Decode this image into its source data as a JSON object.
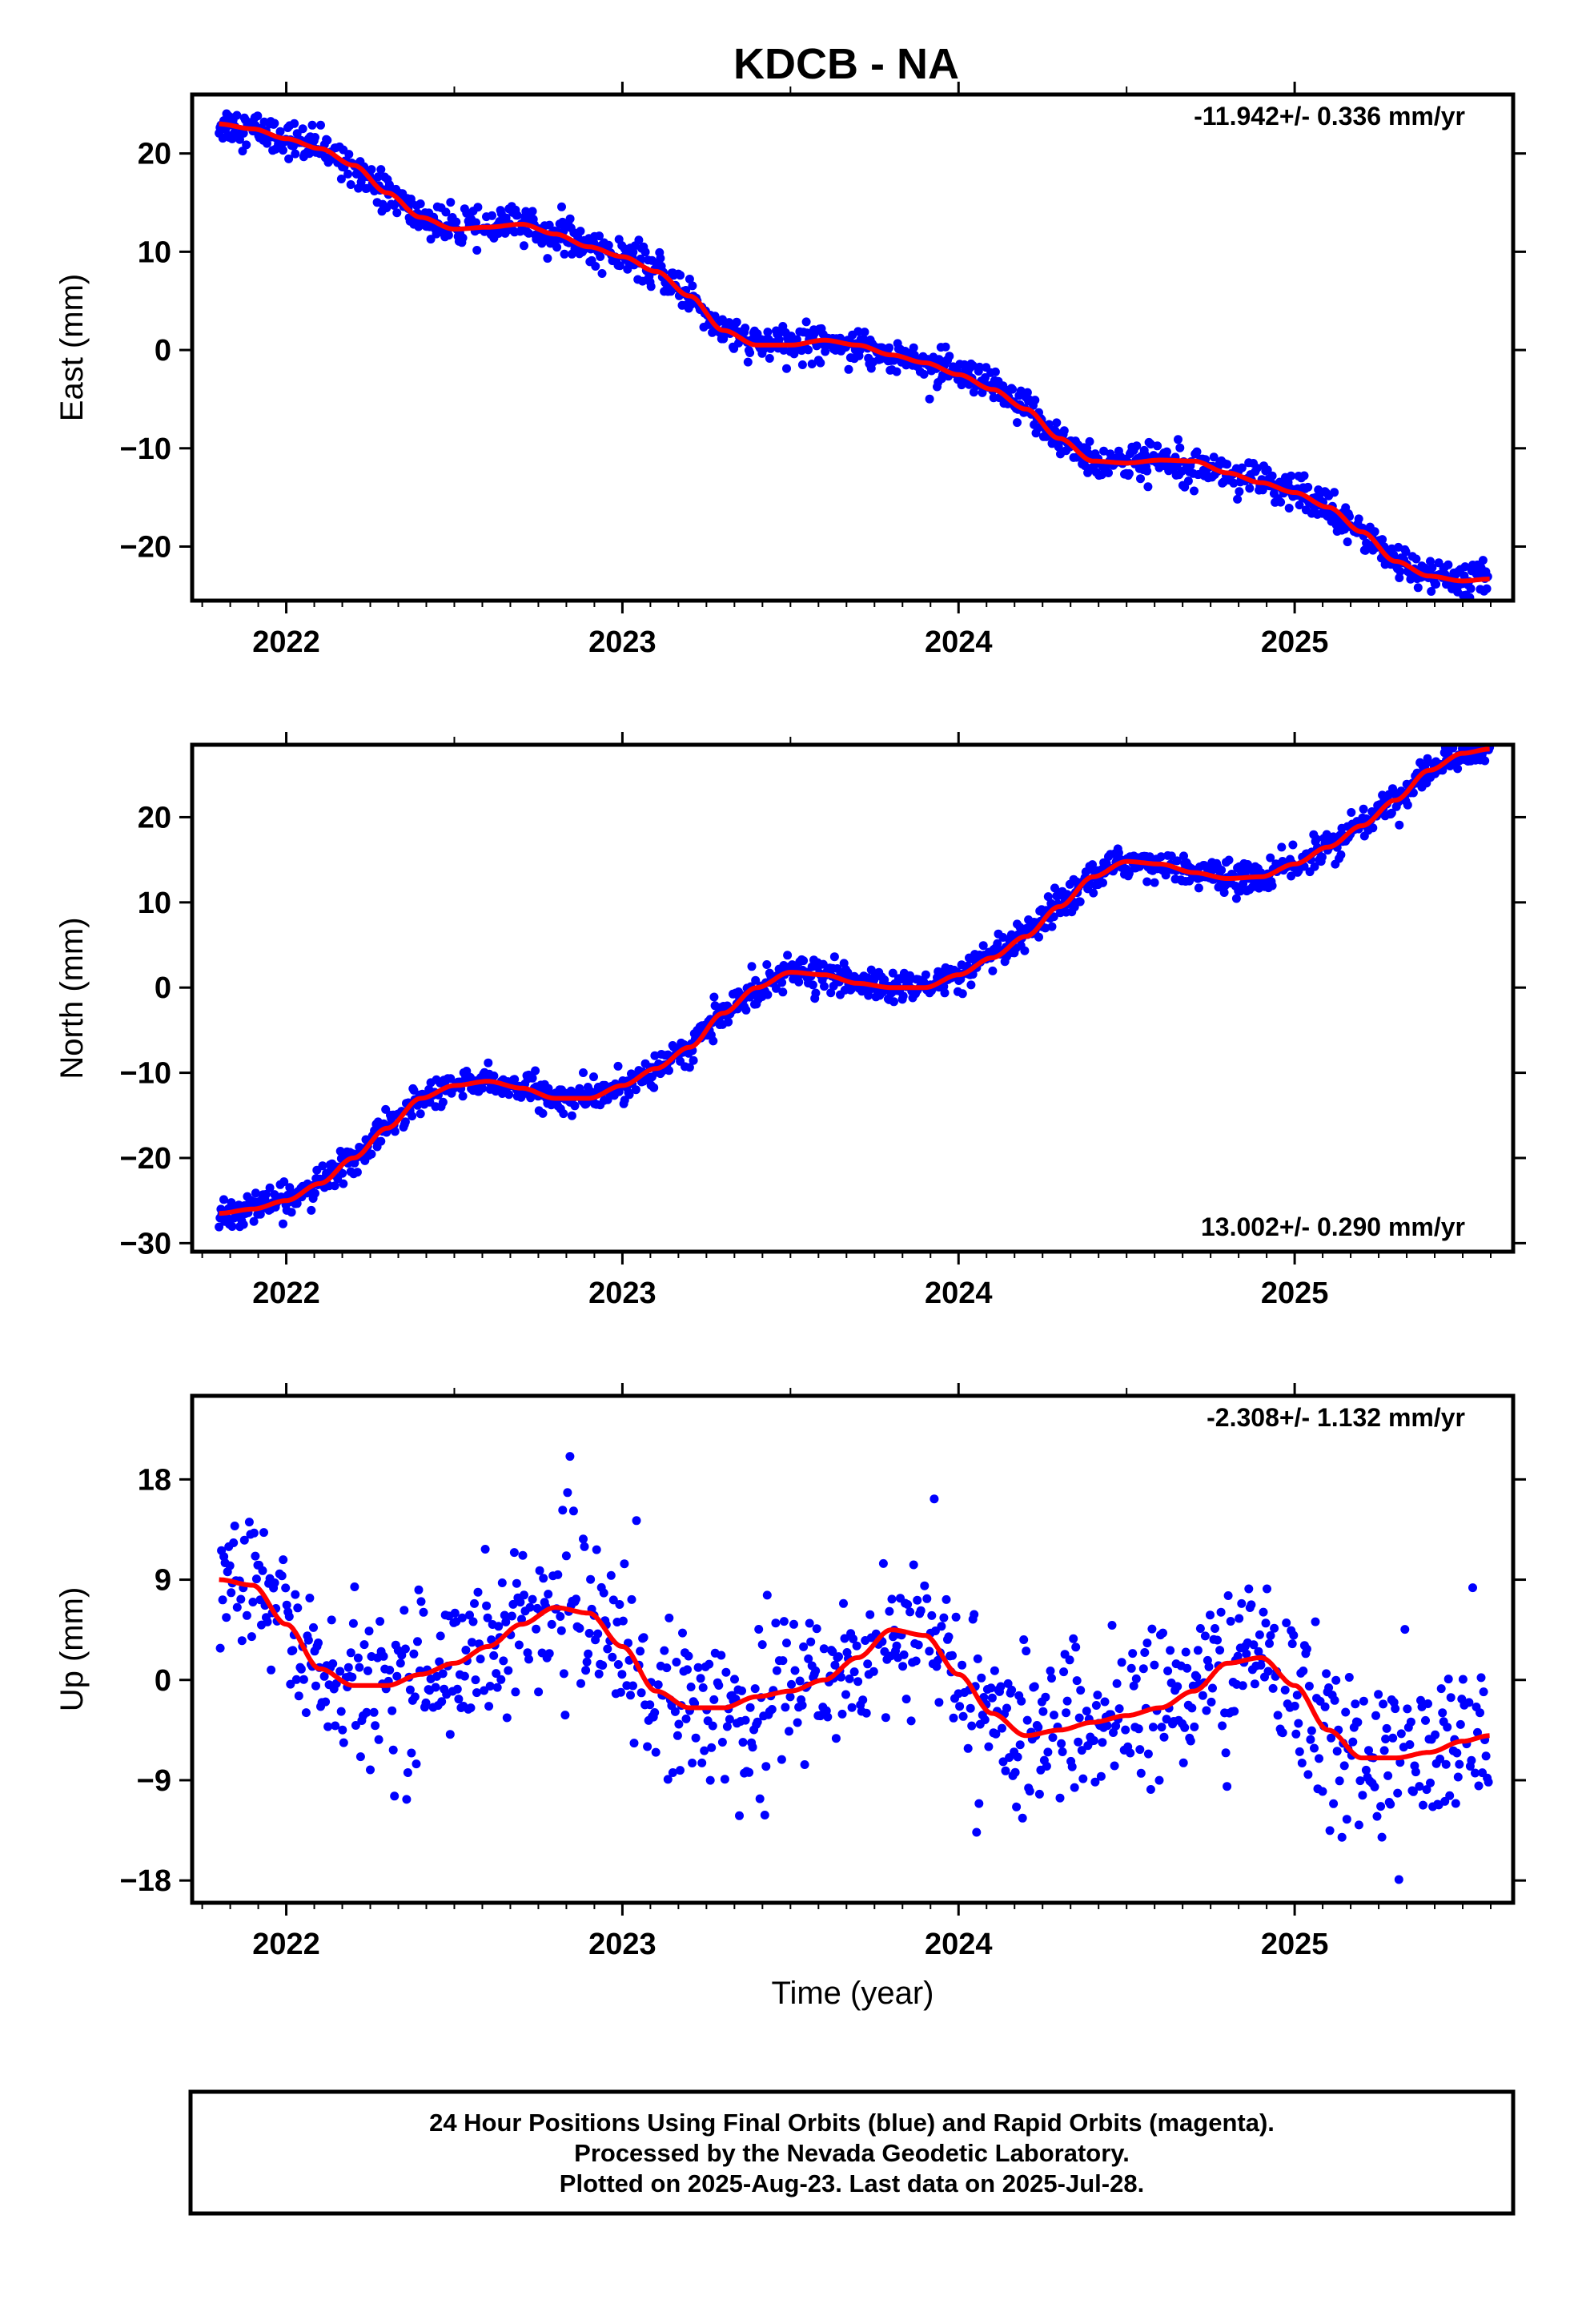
{
  "page": {
    "title": "KDCB - NA",
    "footer_lines": [
      "24 Hour Positions Using Final Orbits (blue) and Rapid Orbits (magenta).",
      "Processed by the Nevada Geodetic Laboratory.",
      "Plotted on 2025-Aug-23. Last data on 2025-Jul-28."
    ],
    "colors": {
      "points": "#0000ff",
      "fit": "#ff0000",
      "frame": "#000000"
    }
  },
  "chart_data": [
    {
      "type": "scatter",
      "component": "east",
      "ylabel": "East (mm)",
      "xlabel": "",
      "rate_text": "-11.942+/- 0.336 mm/yr",
      "rate_position": "top-right",
      "xlim": [
        2021.72,
        2025.65
      ],
      "ylim": [
        -25.5,
        26
      ],
      "xticks": [
        2022,
        2023,
        2024,
        2025
      ],
      "xtick_labels": [
        "2022",
        "2023",
        "2024",
        "2025"
      ],
      "yticks": [
        -20,
        -10,
        0,
        10,
        20
      ],
      "ytick_labels": [
        "−20",
        "−10",
        "0",
        "10",
        "20"
      ],
      "scatter_sigma": 0.9,
      "fit_knots": [
        [
          2021.8,
          23
        ],
        [
          2021.9,
          22.5
        ],
        [
          2022.0,
          21.5
        ],
        [
          2022.1,
          20.5
        ],
        [
          2022.2,
          18.8
        ],
        [
          2022.3,
          16
        ],
        [
          2022.4,
          13.5
        ],
        [
          2022.5,
          12.3
        ],
        [
          2022.6,
          12.5
        ],
        [
          2022.7,
          12.8
        ],
        [
          2022.8,
          11.8
        ],
        [
          2022.9,
          10.5
        ],
        [
          2023.0,
          9.5
        ],
        [
          2023.1,
          8
        ],
        [
          2023.2,
          5.5
        ],
        [
          2023.3,
          2
        ],
        [
          2023.4,
          0.5
        ],
        [
          2023.5,
          0.5
        ],
        [
          2023.6,
          1
        ],
        [
          2023.7,
          0.5
        ],
        [
          2023.8,
          -0.5
        ],
        [
          2023.9,
          -1.3
        ],
        [
          2024.0,
          -2.5
        ],
        [
          2024.1,
          -4
        ],
        [
          2024.2,
          -6
        ],
        [
          2024.3,
          -9
        ],
        [
          2024.4,
          -11.3
        ],
        [
          2024.5,
          -11.5
        ],
        [
          2024.6,
          -11.2
        ],
        [
          2024.7,
          -11.3
        ],
        [
          2024.8,
          -12.5
        ],
        [
          2024.9,
          -13.5
        ],
        [
          2025.0,
          -14.5
        ],
        [
          2025.1,
          -16
        ],
        [
          2025.2,
          -18.5
        ],
        [
          2025.3,
          -21.5
        ],
        [
          2025.4,
          -23
        ],
        [
          2025.5,
          -23.5
        ],
        [
          2025.58,
          -23.3
        ]
      ],
      "fit_curve": "smooth red model following the daily positions"
    },
    {
      "type": "scatter",
      "component": "north",
      "ylabel": "North (mm)",
      "xlabel": "",
      "rate_text": "13.002+/- 0.290 mm/yr",
      "rate_position": "bottom-right",
      "xlim": [
        2021.72,
        2025.65
      ],
      "ylim": [
        -31,
        28.5
      ],
      "xticks": [
        2022,
        2023,
        2024,
        2025
      ],
      "xtick_labels": [
        "2022",
        "2023",
        "2024",
        "2025"
      ],
      "yticks": [
        -30,
        -20,
        -10,
        0,
        10,
        20
      ],
      "ytick_labels": [
        "−30",
        "−20",
        "−10",
        "0",
        "10",
        "20"
      ],
      "scatter_sigma": 0.9,
      "fit_knots": [
        [
          2021.8,
          -26.5
        ],
        [
          2021.9,
          -26
        ],
        [
          2022.0,
          -25
        ],
        [
          2022.1,
          -23
        ],
        [
          2022.2,
          -20
        ],
        [
          2022.3,
          -16.5
        ],
        [
          2022.4,
          -13
        ],
        [
          2022.5,
          -11.5
        ],
        [
          2022.6,
          -11
        ],
        [
          2022.7,
          -11.8
        ],
        [
          2022.8,
          -13
        ],
        [
          2022.9,
          -13
        ],
        [
          2023.0,
          -11.5
        ],
        [
          2023.1,
          -9.5
        ],
        [
          2023.2,
          -7
        ],
        [
          2023.3,
          -3
        ],
        [
          2023.4,
          0
        ],
        [
          2023.5,
          1.8
        ],
        [
          2023.6,
          1.5
        ],
        [
          2023.7,
          0.5
        ],
        [
          2023.8,
          0
        ],
        [
          2023.9,
          0
        ],
        [
          2024.0,
          1.5
        ],
        [
          2024.1,
          3.5
        ],
        [
          2024.2,
          6
        ],
        [
          2024.3,
          9.5
        ],
        [
          2024.4,
          13
        ],
        [
          2024.5,
          14.8
        ],
        [
          2024.6,
          14.5
        ],
        [
          2024.7,
          13.5
        ],
        [
          2024.8,
          12.8
        ],
        [
          2024.9,
          13
        ],
        [
          2025.0,
          14.5
        ],
        [
          2025.1,
          16.5
        ],
        [
          2025.2,
          19
        ],
        [
          2025.3,
          22
        ],
        [
          2025.4,
          25.5
        ],
        [
          2025.5,
          27.5
        ],
        [
          2025.58,
          28
        ]
      ],
      "fit_curve": "smooth red model following the daily positions"
    },
    {
      "type": "scatter",
      "component": "up",
      "ylabel": "Up (mm)",
      "xlabel": "Time (year)",
      "rate_text": "-2.308+/- 1.132 mm/yr",
      "rate_position": "top-right",
      "xlim": [
        2021.72,
        2025.65
      ],
      "ylim": [
        -20,
        25.5
      ],
      "xticks": [
        2022,
        2023,
        2024,
        2025
      ],
      "xtick_labels": [
        "2022",
        "2023",
        "2024",
        "2025"
      ],
      "yticks": [
        -18,
        -9,
        0,
        9,
        18
      ],
      "ytick_labels": [
        "−18",
        "−9",
        "0",
        "9",
        "18"
      ],
      "scatter_sigma": 3.6,
      "fit_knots": [
        [
          2021.8,
          9
        ],
        [
          2021.9,
          8.5
        ],
        [
          2022.0,
          5
        ],
        [
          2022.1,
          1
        ],
        [
          2022.2,
          -0.5
        ],
        [
          2022.3,
          -0.5
        ],
        [
          2022.4,
          0.5
        ],
        [
          2022.5,
          1.5
        ],
        [
          2022.6,
          3
        ],
        [
          2022.7,
          5
        ],
        [
          2022.8,
          6.5
        ],
        [
          2022.9,
          6
        ],
        [
          2023.0,
          3
        ],
        [
          2023.1,
          -1
        ],
        [
          2023.2,
          -2.5
        ],
        [
          2023.3,
          -2.5
        ],
        [
          2023.4,
          -1.5
        ],
        [
          2023.5,
          -1
        ],
        [
          2023.6,
          0
        ],
        [
          2023.7,
          2
        ],
        [
          2023.8,
          4.5
        ],
        [
          2023.9,
          4
        ],
        [
          2024.0,
          0.5
        ],
        [
          2024.1,
          -3
        ],
        [
          2024.2,
          -5
        ],
        [
          2024.3,
          -4.5
        ],
        [
          2024.4,
          -3.8
        ],
        [
          2024.5,
          -3.2
        ],
        [
          2024.6,
          -2.5
        ],
        [
          2024.7,
          -1
        ],
        [
          2024.8,
          1.5
        ],
        [
          2024.9,
          2
        ],
        [
          2025.0,
          -0.5
        ],
        [
          2025.1,
          -4.5
        ],
        [
          2025.2,
          -7
        ],
        [
          2025.3,
          -7
        ],
        [
          2025.4,
          -6.5
        ],
        [
          2025.5,
          -5.5
        ],
        [
          2025.58,
          -5
        ]
      ],
      "fit_curve": "smooth red model following the daily positions"
    }
  ]
}
